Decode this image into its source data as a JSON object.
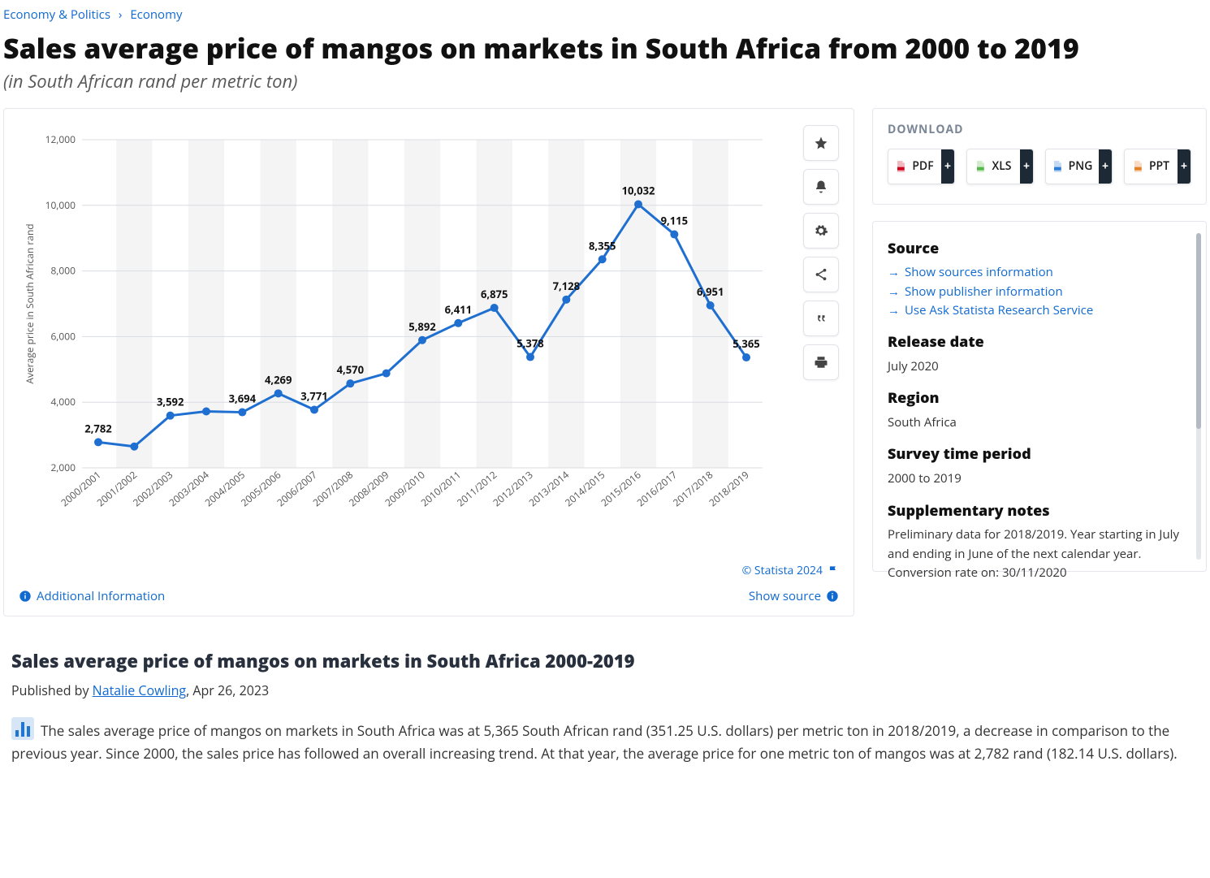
{
  "breadcrumb": {
    "level1": "Economy & Politics",
    "level2": "Economy"
  },
  "title": "Sales average price of mangos on markets in South Africa from 2000 to 2019",
  "subtitle": "(in South African rand per metric ton)",
  "chart": {
    "type": "line",
    "y_axis_title": "Average price in South African rand",
    "ylim": [
      2000,
      12000
    ],
    "ytick_step": 2000,
    "yticks": [
      2000,
      4000,
      6000,
      8000,
      10000,
      12000
    ],
    "ytick_labels": [
      "2,000",
      "4,000",
      "6,000",
      "8,000",
      "10,000",
      "12,000"
    ],
    "categories": [
      "2000/2001",
      "2001/2002",
      "2002/2003",
      "2003/2004",
      "2004/2005",
      "2005/2006",
      "2006/2007",
      "2007/2008",
      "2008/2009",
      "2009/2010",
      "2010/2011",
      "2011/2012",
      "2012/2013",
      "2013/2014",
      "2014/2015",
      "2015/2016",
      "2016/2017",
      "2017/2018",
      "2018/2019"
    ],
    "values": [
      2782,
      2650,
      3592,
      3720,
      3694,
      4269,
      3771,
      4570,
      4880,
      5892,
      6411,
      6875,
      5378,
      7128,
      8355,
      10032,
      9115,
      6951,
      5365
    ],
    "value_labels": [
      "2,782",
      "",
      "3,592",
      "",
      "3,694",
      "4,269",
      "3,771",
      "4,570",
      "",
      "5,892",
      "6,411",
      "6,875",
      "5,378",
      "7,128",
      "8,355",
      "10,032",
      "9,115",
      "6,951",
      "5,365"
    ],
    "line_color": "#1f6fd1",
    "line_width": 3,
    "marker_color": "#1f6fd1",
    "marker_radius": 5,
    "gridline_color": "#d9dde2",
    "band_color": "#f4f4f5",
    "background_color": "#ffffff",
    "data_label_fontsize": 13,
    "axis_label_fontsize": 12,
    "copyright": "© Statista 2024"
  },
  "chart_links": {
    "additional_info": "Additional Information",
    "show_source": "Show source"
  },
  "download": {
    "heading": "DOWNLOAD",
    "buttons": [
      {
        "label": "PDF",
        "icon_color": "#d0021b"
      },
      {
        "label": "XLS",
        "icon_color": "#54b948"
      },
      {
        "label": "PNG",
        "icon_color": "#2b7bd8"
      },
      {
        "label": "PPT",
        "icon_color": "#e67e22"
      }
    ]
  },
  "info": {
    "source_heading": "Source",
    "links": [
      "Show sources information",
      "Show publisher information",
      "Use Ask Statista Research Service"
    ],
    "release_heading": "Release date",
    "release_value": "July 2020",
    "region_heading": "Region",
    "region_value": "South Africa",
    "period_heading": "Survey time period",
    "period_value": "2000 to 2019",
    "notes_heading": "Supplementary notes",
    "notes_value": "Preliminary data for 2018/2019. Year starting in July and ending in June of the next calendar year. Conversion rate on: 30/11/2020"
  },
  "article": {
    "heading": "Sales average price of mangos on markets in South Africa 2000-2019",
    "byline_prefix": "Published by ",
    "author": "Natalie Cowling",
    "byline_suffix": ", Apr 26, 2023",
    "body": "The sales average price of mangos on markets in South Africa was at 5,365 South African rand (351.25 U.S. dollars) per metric ton in 2018/2019, a decrease in comparison to the previous year. Since 2000, the sales price has followed an overall increasing trend. At that year, the average price for one metric ton of mangos was at 2,782 rand (182.14 U.S. dollars)."
  }
}
